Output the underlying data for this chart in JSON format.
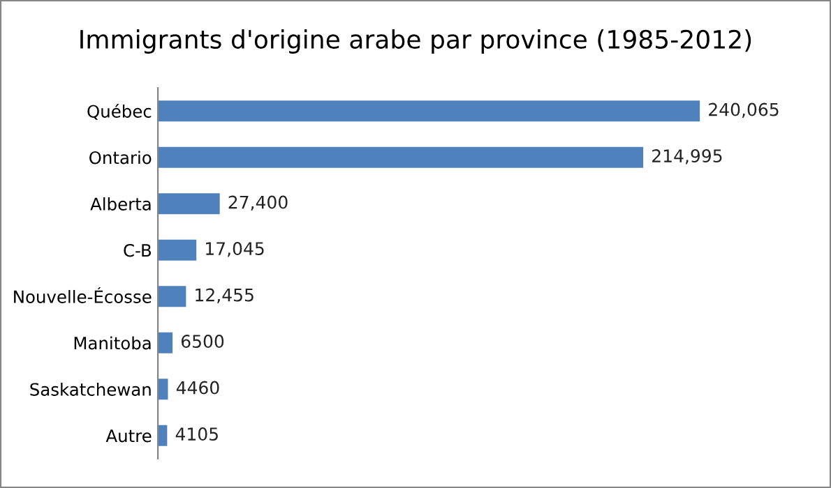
{
  "chart_data": {
    "type": "bar",
    "orientation": "horizontal",
    "title": "Immigrants d'origine arabe par province (1985-2012)",
    "categories": [
      "Québec",
      "Ontario",
      "Alberta",
      "C-B",
      "Nouvelle-Écosse",
      "Manitoba",
      "Saskatchewan",
      "Autre"
    ],
    "values": [
      240065,
      214995,
      27400,
      17045,
      12455,
      6500,
      4460,
      4105
    ],
    "value_labels": [
      "240,065",
      "214,995",
      "27,400",
      "17,045",
      "12,455",
      "6500",
      "4460",
      "4105"
    ],
    "color": "#4f81bd",
    "grid": false,
    "legend": false,
    "tick_labels": "y"
  }
}
